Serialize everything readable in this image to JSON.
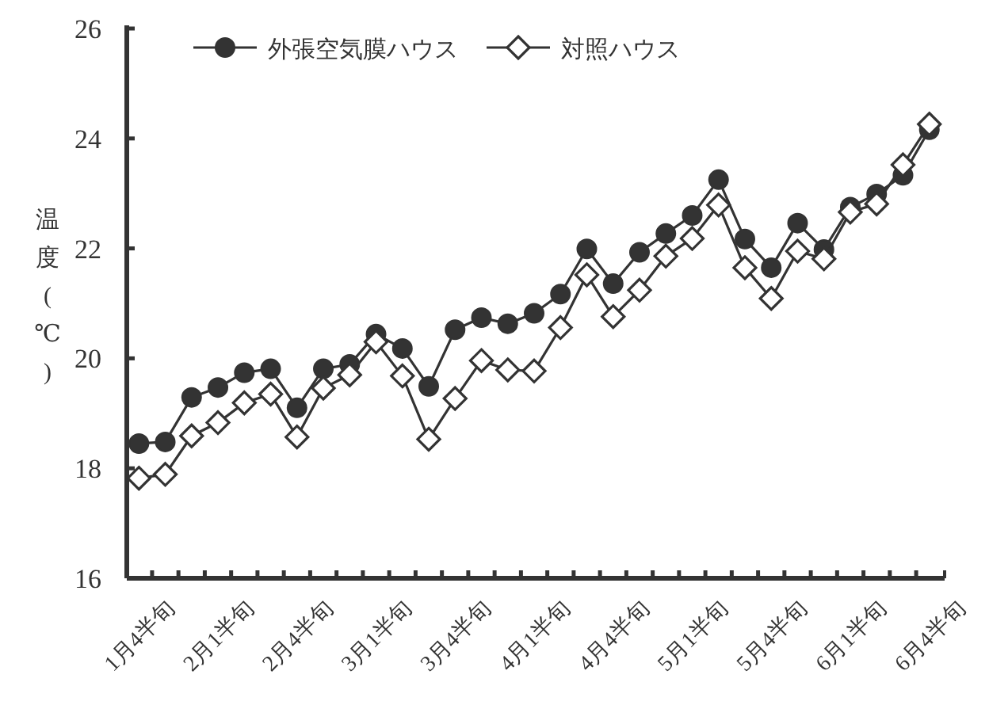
{
  "chart_data": {
    "type": "line",
    "ylabel": "温度(℃)",
    "categories": [
      "1月4半旬",
      null,
      null,
      "2月1半旬",
      null,
      null,
      "2月4半旬",
      null,
      null,
      "3月1半旬",
      null,
      null,
      "3月4半旬",
      null,
      null,
      "4月1半旬",
      null,
      null,
      "4月4半旬",
      null,
      null,
      "5月1半旬",
      null,
      null,
      "5月4半旬",
      null,
      null,
      "6月1半旬",
      null,
      null,
      "6月4半旬"
    ],
    "series": [
      {
        "name": "外張空気膜ハウス",
        "color": "#333333",
        "marker": "circle",
        "values": [
          18.45,
          18.48,
          19.29,
          19.47,
          19.74,
          19.81,
          19.1,
          19.81,
          19.89,
          20.44,
          20.18,
          19.49,
          20.52,
          20.74,
          20.63,
          20.82,
          21.17,
          21.99,
          21.36,
          21.93,
          22.27,
          22.6,
          23.25,
          22.17,
          21.65,
          22.46,
          21.98,
          22.75,
          22.99,
          23.33,
          24.16
        ]
      },
      {
        "name": "対照ハウス",
        "color": "#333333",
        "marker": "diamond",
        "values": [
          17.82,
          17.89,
          18.59,
          18.83,
          19.19,
          19.35,
          18.57,
          19.46,
          19.7,
          20.3,
          19.68,
          18.53,
          19.27,
          19.96,
          19.79,
          19.77,
          20.56,
          21.52,
          20.76,
          21.24,
          21.86,
          22.18,
          22.79,
          21.65,
          21.09,
          21.95,
          21.81,
          22.66,
          22.81,
          23.52,
          24.26
        ]
      }
    ],
    "ylim": [
      16,
      26
    ],
    "yticks": [
      16,
      18,
      20,
      22,
      24,
      26
    ],
    "legend": "top",
    "line_style": "solid"
  }
}
